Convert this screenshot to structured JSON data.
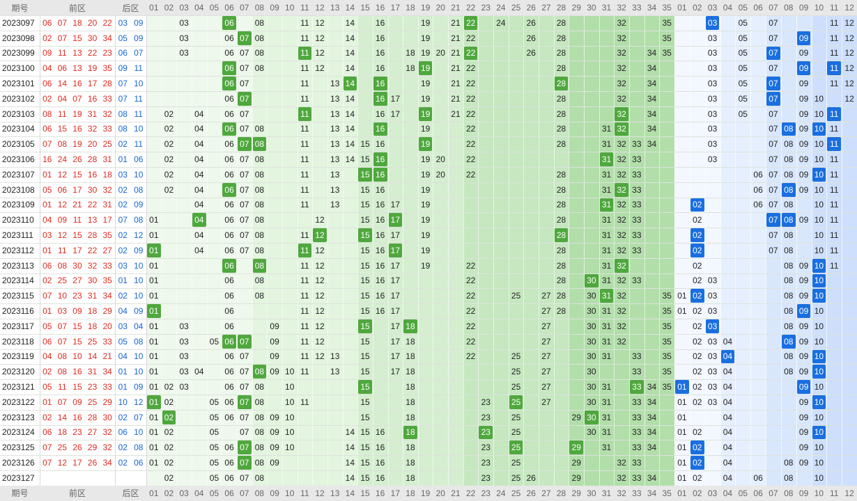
{
  "header": {
    "issue": "期号",
    "front": "前区",
    "back": "后区",
    "front_columns": [
      "01",
      "02",
      "03",
      "04",
      "05",
      "06",
      "07",
      "08",
      "09",
      "10",
      "11",
      "12",
      "13",
      "14",
      "15",
      "16",
      "17",
      "18",
      "19",
      "20",
      "21",
      "22",
      "23",
      "24",
      "25",
      "26",
      "27",
      "28",
      "29",
      "30",
      "31",
      "32",
      "33",
      "34",
      "35"
    ],
    "back_columns": [
      "01",
      "02",
      "03",
      "04",
      "05",
      "06",
      "07",
      "08",
      "09",
      "10",
      "11",
      "12"
    ]
  },
  "rows": [
    {
      "issue": "2023097",
      "front": [
        "06",
        "07",
        "18",
        "20",
        "22"
      ],
      "back": [
        "03",
        "09"
      ],
      "front_plain": [
        "03",
        "08",
        "11",
        "12",
        "14",
        "16",
        "19",
        "21",
        "24",
        "26",
        "28",
        "32",
        "35"
      ],
      "front_marked": [
        "06",
        "22"
      ],
      "back_plain": [
        "05",
        "07",
        "11",
        "12"
      ],
      "back_marked": [
        "03"
      ]
    },
    {
      "issue": "2023098",
      "front": [
        "02",
        "07",
        "15",
        "30",
        "34"
      ],
      "back": [
        "05",
        "09"
      ],
      "front_plain": [
        "03",
        "06",
        "08",
        "11",
        "12",
        "14",
        "16",
        "19",
        "21",
        "22",
        "26",
        "28",
        "32",
        "35"
      ],
      "front_marked": [
        "07"
      ],
      "back_plain": [
        "03",
        "05",
        "07",
        "11",
        "12"
      ],
      "back_marked": [
        "09"
      ]
    },
    {
      "issue": "2023099",
      "front": [
        "09",
        "11",
        "13",
        "22",
        "23"
      ],
      "back": [
        "06",
        "07"
      ],
      "front_plain": [
        "03",
        "06",
        "07",
        "08",
        "12",
        "14",
        "16",
        "18",
        "19",
        "20",
        "21",
        "26",
        "28",
        "32",
        "34",
        "35"
      ],
      "front_marked": [
        "11",
        "22"
      ],
      "back_plain": [
        "03",
        "05",
        "09",
        "11",
        "12"
      ],
      "back_marked": [
        "07"
      ]
    },
    {
      "issue": "2023100",
      "front": [
        "04",
        "06",
        "13",
        "19",
        "35"
      ],
      "back": [
        "09",
        "11"
      ],
      "front_plain": [
        "07",
        "08",
        "11",
        "12",
        "14",
        "16",
        "18",
        "21",
        "22",
        "28",
        "32",
        "34"
      ],
      "front_marked": [
        "06",
        "19"
      ],
      "back_plain": [
        "03",
        "05",
        "07",
        "12"
      ],
      "back_marked": [
        "09",
        "11"
      ]
    },
    {
      "issue": "2023101",
      "front": [
        "06",
        "14",
        "16",
        "17",
        "28"
      ],
      "back": [
        "07",
        "10"
      ],
      "front_plain": [
        "07",
        "11",
        "13",
        "19",
        "21",
        "22",
        "32",
        "34"
      ],
      "front_marked": [
        "06",
        "14",
        "16",
        "28"
      ],
      "back_plain": [
        "03",
        "05",
        "09",
        "11",
        "12"
      ],
      "back_marked": [
        "07"
      ]
    },
    {
      "issue": "2023102",
      "front": [
        "02",
        "04",
        "07",
        "16",
        "33"
      ],
      "back": [
        "07",
        "11"
      ],
      "front_plain": [
        "06",
        "11",
        "13",
        "14",
        "17",
        "19",
        "21",
        "22",
        "28",
        "32",
        "34"
      ],
      "front_marked": [
        "07",
        "16"
      ],
      "back_plain": [
        "03",
        "05",
        "09",
        "10",
        "12"
      ],
      "back_marked": [
        "07"
      ]
    },
    {
      "issue": "2023103",
      "front": [
        "08",
        "11",
        "19",
        "31",
        "32"
      ],
      "back": [
        "08",
        "11"
      ],
      "front_plain": [
        "02",
        "04",
        "06",
        "07",
        "13",
        "14",
        "16",
        "17",
        "21",
        "22",
        "28",
        "34"
      ],
      "front_marked": [
        "11",
        "19",
        "32"
      ],
      "back_plain": [
        "03",
        "05",
        "07",
        "09",
        "10"
      ],
      "back_marked": [
        "11"
      ]
    },
    {
      "issue": "2023104",
      "front": [
        "06",
        "15",
        "16",
        "32",
        "33"
      ],
      "back": [
        "08",
        "10"
      ],
      "front_plain": [
        "02",
        "04",
        "07",
        "08",
        "11",
        "13",
        "14",
        "19",
        "22",
        "28",
        "31",
        "34"
      ],
      "front_marked": [
        "06",
        "16",
        "32"
      ],
      "back_plain": [
        "03",
        "07",
        "09",
        "11"
      ],
      "back_marked": [
        "08",
        "10"
      ]
    },
    {
      "issue": "2023105",
      "front": [
        "07",
        "08",
        "19",
        "20",
        "25"
      ],
      "back": [
        "02",
        "11"
      ],
      "front_plain": [
        "02",
        "04",
        "06",
        "11",
        "13",
        "14",
        "15",
        "16",
        "22",
        "28",
        "31",
        "32",
        "33",
        "34"
      ],
      "front_marked": [
        "07",
        "08",
        "19"
      ],
      "back_plain": [
        "03",
        "07",
        "08",
        "09",
        "10"
      ],
      "back_marked": [
        "11"
      ]
    },
    {
      "issue": "2023106",
      "front": [
        "16",
        "24",
        "26",
        "28",
        "31"
      ],
      "back": [
        "01",
        "06"
      ],
      "front_plain": [
        "02",
        "04",
        "06",
        "07",
        "08",
        "11",
        "13",
        "14",
        "15",
        "19",
        "20",
        "22",
        "32",
        "33"
      ],
      "front_marked": [
        "16",
        "31"
      ],
      "back_plain": [
        "03",
        "07",
        "08",
        "09",
        "10",
        "11"
      ],
      "back_marked": []
    },
    {
      "issue": "2023107",
      "front": [
        "01",
        "12",
        "15",
        "16",
        "18"
      ],
      "back": [
        "03",
        "10"
      ],
      "front_plain": [
        "02",
        "04",
        "06",
        "07",
        "08",
        "11",
        "13",
        "19",
        "20",
        "22",
        "28",
        "31",
        "32",
        "33"
      ],
      "front_marked": [
        "15",
        "16"
      ],
      "back_plain": [
        "06",
        "07",
        "08",
        "09",
        "11"
      ],
      "back_marked": [
        "10"
      ]
    },
    {
      "issue": "2023108",
      "front": [
        "05",
        "06",
        "17",
        "30",
        "32"
      ],
      "back": [
        "02",
        "08"
      ],
      "front_plain": [
        "02",
        "04",
        "07",
        "08",
        "11",
        "13",
        "15",
        "16",
        "19",
        "28",
        "31",
        "33"
      ],
      "front_marked": [
        "06",
        "32"
      ],
      "back_plain": [
        "06",
        "07",
        "09",
        "10",
        "11"
      ],
      "back_marked": [
        "08"
      ]
    },
    {
      "issue": "2023109",
      "front": [
        "01",
        "12",
        "21",
        "22",
        "31"
      ],
      "back": [
        "02",
        "09"
      ],
      "front_plain": [
        "04",
        "06",
        "07",
        "08",
        "11",
        "13",
        "15",
        "16",
        "17",
        "19",
        "28",
        "32",
        "33"
      ],
      "front_marked": [
        "31"
      ],
      "back_plain": [
        "06",
        "07",
        "08",
        "10",
        "11"
      ],
      "back_marked": [
        "02"
      ]
    },
    {
      "issue": "2023110",
      "front": [
        "04",
        "09",
        "11",
        "13",
        "17"
      ],
      "back": [
        "07",
        "08"
      ],
      "front_plain": [
        "01",
        "06",
        "07",
        "08",
        "12",
        "15",
        "16",
        "19",
        "28",
        "31",
        "32",
        "33"
      ],
      "front_marked": [
        "04",
        "17"
      ],
      "back_plain": [
        "02",
        "09",
        "10",
        "11"
      ],
      "back_marked": [
        "07",
        "08"
      ]
    },
    {
      "issue": "2023111",
      "front": [
        "03",
        "12",
        "15",
        "28",
        "35"
      ],
      "back": [
        "02",
        "12"
      ],
      "front_plain": [
        "01",
        "04",
        "06",
        "07",
        "08",
        "11",
        "16",
        "17",
        "19",
        "31",
        "32",
        "33"
      ],
      "front_marked": [
        "12",
        "15",
        "28"
      ],
      "back_plain": [
        "07",
        "08",
        "10",
        "11"
      ],
      "back_marked": [
        "02"
      ]
    },
    {
      "issue": "2023112",
      "front": [
        "01",
        "11",
        "17",
        "22",
        "27"
      ],
      "back": [
        "02",
        "09"
      ],
      "front_plain": [
        "04",
        "06",
        "07",
        "08",
        "12",
        "15",
        "16",
        "19",
        "28",
        "31",
        "32",
        "33"
      ],
      "front_marked": [
        "01",
        "11",
        "17"
      ],
      "back_plain": [
        "07",
        "08",
        "10",
        "11"
      ],
      "back_marked": [
        "02"
      ]
    },
    {
      "issue": "2023113",
      "front": [
        "06",
        "08",
        "30",
        "32",
        "33"
      ],
      "back": [
        "03",
        "10"
      ],
      "front_plain": [
        "01",
        "11",
        "12",
        "15",
        "16",
        "17",
        "19",
        "22",
        "28",
        "31"
      ],
      "front_marked": [
        "06",
        "08",
        "32"
      ],
      "back_plain": [
        "02",
        "08",
        "09",
        "11"
      ],
      "back_marked": [
        "10"
      ]
    },
    {
      "issue": "2023114",
      "front": [
        "02",
        "25",
        "27",
        "30",
        "35"
      ],
      "back": [
        "01",
        "10"
      ],
      "front_plain": [
        "01",
        "06",
        "08",
        "11",
        "12",
        "15",
        "16",
        "17",
        "22",
        "28",
        "31",
        "32",
        "33"
      ],
      "front_marked": [
        "30"
      ],
      "back_plain": [
        "02",
        "03",
        "08",
        "09"
      ],
      "back_marked": [
        "10"
      ]
    },
    {
      "issue": "2023115",
      "front": [
        "07",
        "10",
        "23",
        "31",
        "34"
      ],
      "back": [
        "02",
        "10"
      ],
      "front_plain": [
        "01",
        "06",
        "08",
        "11",
        "12",
        "15",
        "16",
        "17",
        "22",
        "25",
        "27",
        "28",
        "30",
        "32",
        "35"
      ],
      "front_marked": [
        "31"
      ],
      "back_plain": [
        "01",
        "03",
        "08",
        "09"
      ],
      "back_marked": [
        "02",
        "10"
      ]
    },
    {
      "issue": "2023116",
      "front": [
        "01",
        "03",
        "09",
        "18",
        "29"
      ],
      "back": [
        "04",
        "09"
      ],
      "front_plain": [
        "06",
        "11",
        "12",
        "15",
        "16",
        "17",
        "22",
        "27",
        "28",
        "30",
        "31",
        "32",
        "35"
      ],
      "front_marked": [
        "01"
      ],
      "back_plain": [
        "01",
        "02",
        "03",
        "08",
        "10"
      ],
      "back_marked": [
        "09"
      ]
    },
    {
      "issue": "2023117",
      "front": [
        "05",
        "07",
        "15",
        "18",
        "20"
      ],
      "back": [
        "03",
        "04"
      ],
      "front_plain": [
        "01",
        "03",
        "06",
        "09",
        "11",
        "12",
        "17",
        "22",
        "27",
        "30",
        "31",
        "32",
        "35"
      ],
      "front_marked": [
        "15",
        "18"
      ],
      "back_plain": [
        "02",
        "08",
        "09",
        "10"
      ],
      "back_marked": [
        "03"
      ]
    },
    {
      "issue": "2023118",
      "front": [
        "06",
        "07",
        "15",
        "25",
        "33"
      ],
      "back": [
        "05",
        "08"
      ],
      "front_plain": [
        "01",
        "03",
        "05",
        "09",
        "11",
        "12",
        "15",
        "17",
        "18",
        "22",
        "27",
        "30",
        "31",
        "32",
        "35"
      ],
      "front_marked": [
        "06",
        "07"
      ],
      "back_plain": [
        "02",
        "03",
        "04",
        "09",
        "10"
      ],
      "back_marked": [
        "08"
      ]
    },
    {
      "issue": "2023119",
      "front": [
        "04",
        "08",
        "10",
        "14",
        "21"
      ],
      "back": [
        "04",
        "10"
      ],
      "front_plain": [
        "01",
        "03",
        "06",
        "07",
        "09",
        "11",
        "12",
        "13",
        "15",
        "17",
        "18",
        "22",
        "25",
        "27",
        "30",
        "31",
        "33",
        "35"
      ],
      "front_marked": [],
      "back_plain": [
        "02",
        "03",
        "08",
        "09"
      ],
      "back_marked": [
        "04",
        "10"
      ]
    },
    {
      "issue": "2023120",
      "front": [
        "02",
        "08",
        "16",
        "31",
        "34"
      ],
      "back": [
        "01",
        "10"
      ],
      "front_plain": [
        "01",
        "03",
        "04",
        "06",
        "07",
        "09",
        "10",
        "11",
        "13",
        "15",
        "17",
        "18",
        "25",
        "27",
        "30",
        "33",
        "35"
      ],
      "front_marked": [
        "08"
      ],
      "back_plain": [
        "02",
        "03",
        "04",
        "08",
        "09"
      ],
      "back_marked": [
        "10"
      ]
    },
    {
      "issue": "2023121",
      "front": [
        "05",
        "11",
        "15",
        "23",
        "33"
      ],
      "back": [
        "01",
        "09"
      ],
      "front_plain": [
        "01",
        "02",
        "03",
        "06",
        "07",
        "08",
        "10",
        "18",
        "25",
        "27",
        "30",
        "31",
        "34",
        "35"
      ],
      "front_marked": [
        "15",
        "33"
      ],
      "back_plain": [
        "02",
        "03",
        "04",
        "10"
      ],
      "back_marked": [
        "01",
        "09"
      ]
    },
    {
      "issue": "2023122",
      "front": [
        "01",
        "07",
        "09",
        "25",
        "29"
      ],
      "back": [
        "10",
        "12"
      ],
      "front_plain": [
        "02",
        "05",
        "06",
        "08",
        "10",
        "11",
        "15",
        "18",
        "23",
        "27",
        "30",
        "31",
        "33",
        "34"
      ],
      "front_marked": [
        "01",
        "07",
        "25"
      ],
      "back_plain": [
        "01",
        "02",
        "03",
        "04",
        "09"
      ],
      "back_marked": [
        "10"
      ]
    },
    {
      "issue": "2023123",
      "front": [
        "02",
        "14",
        "16",
        "28",
        "30"
      ],
      "back": [
        "02",
        "07"
      ],
      "front_plain": [
        "01",
        "05",
        "06",
        "07",
        "08",
        "09",
        "10",
        "15",
        "18",
        "23",
        "25",
        "29",
        "31",
        "33",
        "34"
      ],
      "front_marked": [
        "02",
        "30"
      ],
      "back_plain": [
        "01",
        "04",
        "09",
        "10"
      ],
      "back_marked": []
    },
    {
      "issue": "2023124",
      "front": [
        "06",
        "18",
        "23",
        "27",
        "32"
      ],
      "back": [
        "06",
        "10"
      ],
      "front_plain": [
        "01",
        "02",
        "05",
        "07",
        "08",
        "09",
        "10",
        "14",
        "15",
        "16",
        "25",
        "30",
        "31",
        "33",
        "34"
      ],
      "front_marked": [
        "18",
        "23"
      ],
      "back_plain": [
        "01",
        "02",
        "04",
        "09"
      ],
      "back_marked": [
        "10"
      ]
    },
    {
      "issue": "2023125",
      "front": [
        "07",
        "25",
        "26",
        "29",
        "32"
      ],
      "back": [
        "02",
        "08"
      ],
      "front_plain": [
        "01",
        "02",
        "05",
        "06",
        "08",
        "09",
        "10",
        "14",
        "15",
        "16",
        "18",
        "23",
        "31",
        "33",
        "34"
      ],
      "front_marked": [
        "07",
        "25",
        "29"
      ],
      "back_plain": [
        "01",
        "04",
        "09",
        "10"
      ],
      "back_marked": [
        "02"
      ]
    },
    {
      "issue": "2023126",
      "front": [
        "07",
        "12",
        "17",
        "26",
        "34"
      ],
      "back": [
        "02",
        "06"
      ],
      "front_plain": [
        "01",
        "02",
        "05",
        "06",
        "08",
        "09",
        "14",
        "15",
        "16",
        "18",
        "23",
        "25",
        "29",
        "32",
        "33"
      ],
      "front_marked": [
        "07"
      ],
      "back_plain": [
        "01",
        "04",
        "08",
        "09",
        "10"
      ],
      "back_marked": [
        "02"
      ]
    },
    {
      "issue": "2023127",
      "front": [],
      "back": [],
      "front_plain": [
        "02",
        "05",
        "06",
        "07",
        "08",
        "14",
        "15",
        "16",
        "18",
        "23",
        "25",
        "26",
        "29",
        "32",
        "33",
        "34"
      ],
      "front_marked": [],
      "back_plain": [
        "01",
        "02",
        "04",
        "06",
        "08",
        "10"
      ],
      "back_marked": []
    }
  ]
}
